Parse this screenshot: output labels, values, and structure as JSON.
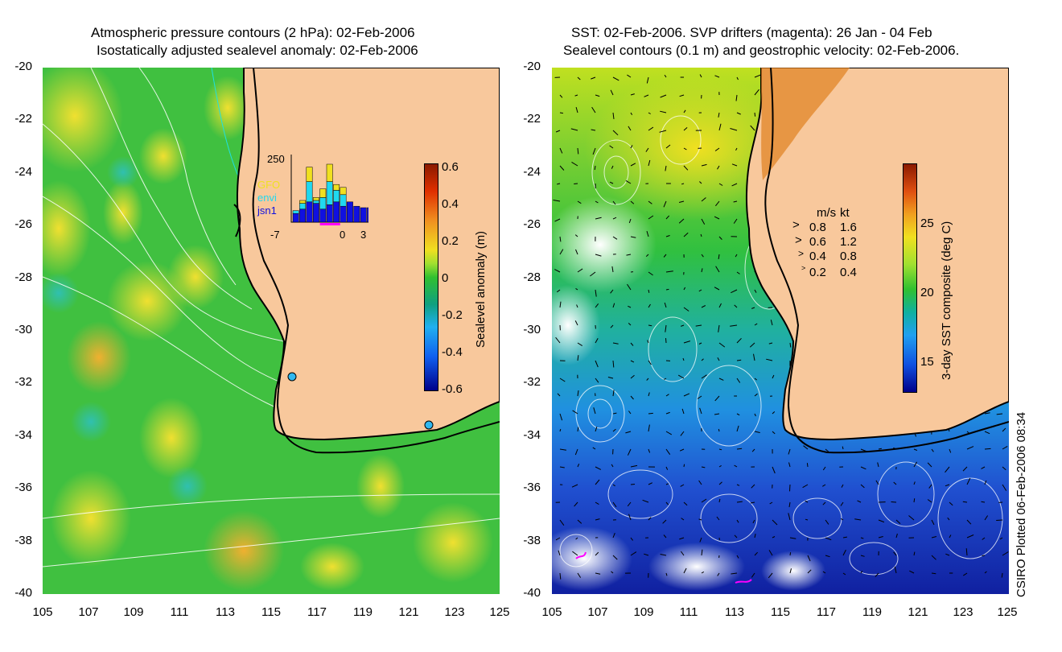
{
  "left_panel": {
    "title_line1": "Atmospheric pressure contours (2 hPa): 02-Feb-2006",
    "title_line2": "Isostatically adjusted sealevel anomaly: 02-Feb-2006",
    "colorbar": {
      "label": "Sealevel anomaly (m)",
      "ticks": [
        "0.6",
        "0.4",
        "0.2",
        "0",
        "-0.2",
        "-0.4",
        "-0.6"
      ]
    },
    "inset": {
      "ymax_label": "250",
      "x_labels": [
        "-7",
        "0",
        "3"
      ],
      "legend": [
        {
          "name": "GFO",
          "color": "#f0e020"
        },
        {
          "name": "envi",
          "color": "#20d8f0"
        },
        {
          "name": "jsn1",
          "color": "#1010e0"
        }
      ],
      "bars_jsn1": [
        30,
        45,
        70,
        65,
        45,
        60,
        70,
        55,
        70,
        55,
        50,
        50
      ],
      "bars_envi": [
        10,
        20,
        70,
        10,
        40,
        80,
        40,
        40,
        0,
        0,
        0,
        0
      ],
      "bars_gfo": [
        0,
        10,
        50,
        10,
        30,
        60,
        20,
        25,
        0,
        0,
        0,
        0
      ]
    }
  },
  "right_panel": {
    "title_line1": "SST: 02-Feb-2006. SVP drifters (magenta): 26 Jan - 04 Feb",
    "title_line2": "Sealevel contours (0.1 m) and geostrophic velocity: 02-Feb-2006.",
    "colorbar": {
      "label": "3-day SST composite (deg C)",
      "ticks": [
        "25",
        "20",
        "15"
      ]
    },
    "velocity_key": {
      "header_ms": "m/s",
      "header_kt": "kt",
      "rows": [
        {
          "ms": "0.8",
          "kt": "1.6"
        },
        {
          "ms": "0.6",
          "kt": "1.2"
        },
        {
          "ms": "0.4",
          "kt": "0.8"
        },
        {
          "ms": "0.2",
          "kt": "0.4"
        }
      ]
    }
  },
  "axes": {
    "x_ticks": [
      "105",
      "107",
      "109",
      "111",
      "113",
      "115",
      "117",
      "119",
      "121",
      "123",
      "125"
    ],
    "y_ticks": [
      "-20",
      "-22",
      "-24",
      "-26",
      "-28",
      "-30",
      "-32",
      "-34",
      "-36",
      "-38",
      "-40"
    ]
  },
  "credit": "CSIRO Plotted 06-Feb-2006 08:34",
  "colors": {
    "land": "#f8c89c",
    "coast": "#000000",
    "drifter": "#ff00ff",
    "tide_gauge": "#30b8f0"
  }
}
